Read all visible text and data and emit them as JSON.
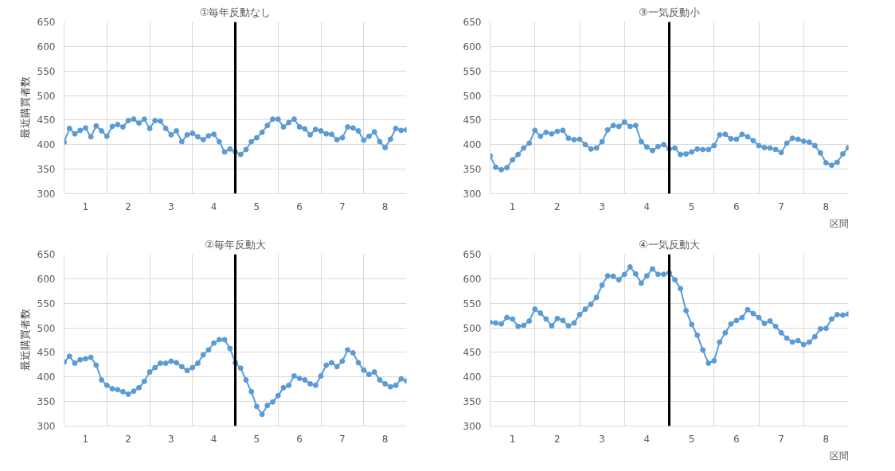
{
  "chart_data": [
    {
      "type": "line",
      "title": "①毎年反動なし",
      "ylabel": "最近購買者数",
      "x": [
        0.5,
        0.625,
        0.75,
        0.875,
        1,
        1.125,
        1.25,
        1.375,
        1.5,
        1.625,
        1.75,
        1.875,
        2,
        2.125,
        2.25,
        2.375,
        2.5,
        2.625,
        2.75,
        2.875,
        3,
        3.125,
        3.25,
        3.375,
        3.5,
        3.625,
        3.75,
        3.875,
        4,
        4.125,
        4.25,
        4.375,
        4.5,
        4.625,
        4.75,
        4.875,
        5,
        5.125,
        5.25,
        5.375,
        5.5,
        5.625,
        5.75,
        5.875,
        6,
        6.125,
        6.25,
        6.375,
        6.5,
        6.625,
        6.75,
        6.875,
        7,
        7.125,
        7.25,
        7.375,
        7.5,
        7.625,
        7.75,
        7.875,
        8,
        8.125,
        8.25,
        8.375,
        8.5
      ],
      "series": [
        {
          "color": "#5b9bd5",
          "values": [
            405,
            433,
            422,
            429,
            434,
            416,
            438,
            428,
            417,
            437,
            441,
            436,
            449,
            452,
            444,
            452,
            433,
            449,
            448,
            433,
            420,
            428,
            406,
            420,
            423,
            416,
            410,
            418,
            421,
            406,
            385,
            391,
            385,
            380,
            390,
            406,
            414,
            425,
            439,
            452,
            452,
            436,
            445,
            452,
            436,
            432,
            420,
            431,
            428,
            422,
            421,
            410,
            414,
            436,
            434,
            428,
            409,
            417,
            426,
            406,
            394,
            411,
            433,
            429,
            430
          ]
        }
      ],
      "xlim": [
        0.5,
        8.5
      ],
      "xticks": [
        1,
        {
          "value": 1.5,
          "label": null
        },
        2,
        {
          "value": 2.5,
          "label": null
        },
        3,
        {
          "value": 3.5,
          "label": null
        },
        4,
        {
          "value": 4.5,
          "label": null
        },
        5,
        {
          "value": 5.5,
          "label": null
        },
        6,
        {
          "value": 6.5,
          "label": null
        },
        7,
        {
          "value": 7.5,
          "label": null
        },
        8
      ],
      "ylim": [
        300,
        650
      ],
      "yticks": [
        300,
        350,
        400,
        450,
        500,
        550,
        600,
        650
      ],
      "grid": true,
      "marker": "circle",
      "line_style": "solid",
      "ref_lines": [
        {
          "axis": "x",
          "value": 4.5,
          "color": "#000000"
        }
      ]
    },
    {
      "type": "line",
      "title": "③一気反動小",
      "xlabel": "区間",
      "x": [
        0.5,
        0.625,
        0.75,
        0.875,
        1,
        1.125,
        1.25,
        1.375,
        1.5,
        1.625,
        1.75,
        1.875,
        2,
        2.125,
        2.25,
        2.375,
        2.5,
        2.625,
        2.75,
        2.875,
        3,
        3.125,
        3.25,
        3.375,
        3.5,
        3.625,
        3.75,
        3.875,
        4,
        4.125,
        4.25,
        4.375,
        4.5,
        4.625,
        4.75,
        4.875,
        5,
        5.125,
        5.25,
        5.375,
        5.5,
        5.625,
        5.75,
        5.875,
        6,
        6.125,
        6.25,
        6.375,
        6.5,
        6.625,
        6.75,
        6.875,
        7,
        7.125,
        7.25,
        7.375,
        7.5,
        7.625,
        7.75,
        7.875,
        8,
        8.125,
        8.25,
        8.375,
        8.5
      ],
      "series": [
        {
          "color": "#5b9bd5",
          "values": [
            377,
            354,
            349,
            353,
            369,
            380,
            393,
            403,
            429,
            417,
            425,
            422,
            427,
            429,
            413,
            410,
            411,
            400,
            391,
            393,
            406,
            430,
            439,
            437,
            446,
            437,
            439,
            406,
            395,
            388,
            396,
            400,
            391,
            393,
            380,
            381,
            385,
            391,
            390,
            390,
            398,
            420,
            421,
            412,
            411,
            421,
            416,
            408,
            398,
            394,
            393,
            390,
            384,
            403,
            413,
            411,
            407,
            405,
            398,
            383,
            363,
            358,
            364,
            381,
            394
          ]
        }
      ],
      "xlim": [
        0.5,
        8.5
      ],
      "xticks": [
        1,
        {
          "value": 1.5,
          "label": null
        },
        2,
        {
          "value": 2.5,
          "label": null
        },
        3,
        {
          "value": 3.5,
          "label": null
        },
        4,
        {
          "value": 4.5,
          "label": null
        },
        5,
        {
          "value": 5.5,
          "label": null
        },
        6,
        {
          "value": 6.5,
          "label": null
        },
        7,
        {
          "value": 7.5,
          "label": null
        },
        8
      ],
      "ylim": [
        300,
        650
      ],
      "yticks": [
        300,
        350,
        400,
        450,
        500,
        550,
        600,
        650
      ],
      "grid": true,
      "marker": "circle",
      "line_style": "solid",
      "ref_lines": [
        {
          "axis": "x",
          "value": 4.5,
          "color": "#000000"
        }
      ]
    },
    {
      "type": "line",
      "title": "②毎年反動大",
      "ylabel": "最近購買者数",
      "x": [
        0.5,
        0.625,
        0.75,
        0.875,
        1,
        1.125,
        1.25,
        1.375,
        1.5,
        1.625,
        1.75,
        1.875,
        2,
        2.125,
        2.25,
        2.375,
        2.5,
        2.625,
        2.75,
        2.875,
        3,
        3.125,
        3.25,
        3.375,
        3.5,
        3.625,
        3.75,
        3.875,
        4,
        4.125,
        4.25,
        4.375,
        4.5,
        4.625,
        4.75,
        4.875,
        5,
        5.125,
        5.25,
        5.375,
        5.5,
        5.625,
        5.75,
        5.875,
        6,
        6.125,
        6.25,
        6.375,
        6.5,
        6.625,
        6.75,
        6.875,
        7,
        7.125,
        7.25,
        7.375,
        7.5,
        7.625,
        7.75,
        7.875,
        8,
        8.125,
        8.25,
        8.375,
        8.5
      ],
      "series": [
        {
          "color": "#5b9bd5",
          "values": [
            430,
            442,
            428,
            435,
            437,
            440,
            424,
            394,
            383,
            376,
            374,
            370,
            365,
            371,
            378,
            391,
            410,
            419,
            428,
            428,
            432,
            429,
            421,
            413,
            419,
            428,
            445,
            455,
            469,
            476,
            476,
            458,
            429,
            418,
            394,
            370,
            340,
            324,
            342,
            349,
            362,
            378,
            383,
            402,
            397,
            394,
            386,
            383,
            402,
            424,
            429,
            421,
            432,
            455,
            449,
            429,
            414,
            405,
            410,
            394,
            386,
            380,
            383,
            396,
            392
          ]
        }
      ],
      "xlim": [
        0.5,
        8.5
      ],
      "xticks": [
        1,
        {
          "value": 1.5,
          "label": null
        },
        2,
        {
          "value": 2.5,
          "label": null
        },
        3,
        {
          "value": 3.5,
          "label": null
        },
        4,
        {
          "value": 4.5,
          "label": null
        },
        5,
        {
          "value": 5.5,
          "label": null
        },
        6,
        {
          "value": 6.5,
          "label": null
        },
        7,
        {
          "value": 7.5,
          "label": null
        },
        8
      ],
      "ylim": [
        300,
        650
      ],
      "yticks": [
        300,
        350,
        400,
        450,
        500,
        550,
        600,
        650
      ],
      "grid": true,
      "marker": "circle",
      "line_style": "solid",
      "ref_lines": [
        {
          "axis": "x",
          "value": 4.5,
          "color": "#000000"
        }
      ]
    },
    {
      "type": "line",
      "title": "④一気反動大",
      "xlabel": "区間",
      "x": [
        0.5,
        0.625,
        0.75,
        0.875,
        1,
        1.125,
        1.25,
        1.375,
        1.5,
        1.625,
        1.75,
        1.875,
        2,
        2.125,
        2.25,
        2.375,
        2.5,
        2.625,
        2.75,
        2.875,
        3,
        3.125,
        3.25,
        3.375,
        3.5,
        3.625,
        3.75,
        3.875,
        4,
        4.125,
        4.25,
        4.375,
        4.5,
        4.625,
        4.75,
        4.875,
        5,
        5.125,
        5.25,
        5.375,
        5.5,
        5.625,
        5.75,
        5.875,
        6,
        6.125,
        6.25,
        6.375,
        6.5,
        6.625,
        6.75,
        6.875,
        7,
        7.125,
        7.25,
        7.375,
        7.5,
        7.625,
        7.75,
        7.875,
        8,
        8.125,
        8.25,
        8.375,
        8.5
      ],
      "series": [
        {
          "color": "#5b9bd5",
          "values": [
            511,
            510,
            508,
            521,
            518,
            503,
            505,
            514,
            538,
            530,
            518,
            504,
            519,
            515,
            504,
            510,
            527,
            538,
            548,
            562,
            587,
            606,
            605,
            598,
            609,
            624,
            610,
            591,
            606,
            620,
            609,
            609,
            612,
            598,
            580,
            535,
            507,
            485,
            455,
            428,
            433,
            471,
            490,
            508,
            515,
            521,
            537,
            529,
            521,
            509,
            514,
            503,
            490,
            479,
            471,
            474,
            466,
            471,
            482,
            498,
            499,
            518,
            527,
            526,
            528
          ]
        }
      ],
      "xlim": [
        0.5,
        8.5
      ],
      "xticks": [
        1,
        {
          "value": 1.5,
          "label": null
        },
        2,
        {
          "value": 2.5,
          "label": null
        },
        3,
        {
          "value": 3.5,
          "label": null
        },
        4,
        {
          "value": 4.5,
          "label": null
        },
        5,
        {
          "value": 5.5,
          "label": null
        },
        6,
        {
          "value": 6.5,
          "label": null
        },
        7,
        {
          "value": 7.5,
          "label": null
        },
        8
      ],
      "ylim": [
        300,
        650
      ],
      "yticks": [
        300,
        350,
        400,
        450,
        500,
        550,
        600,
        650
      ],
      "grid": true,
      "marker": "circle",
      "line_style": "solid",
      "ref_lines": [
        {
          "axis": "x",
          "value": 4.5,
          "color": "#000000"
        }
      ]
    }
  ]
}
